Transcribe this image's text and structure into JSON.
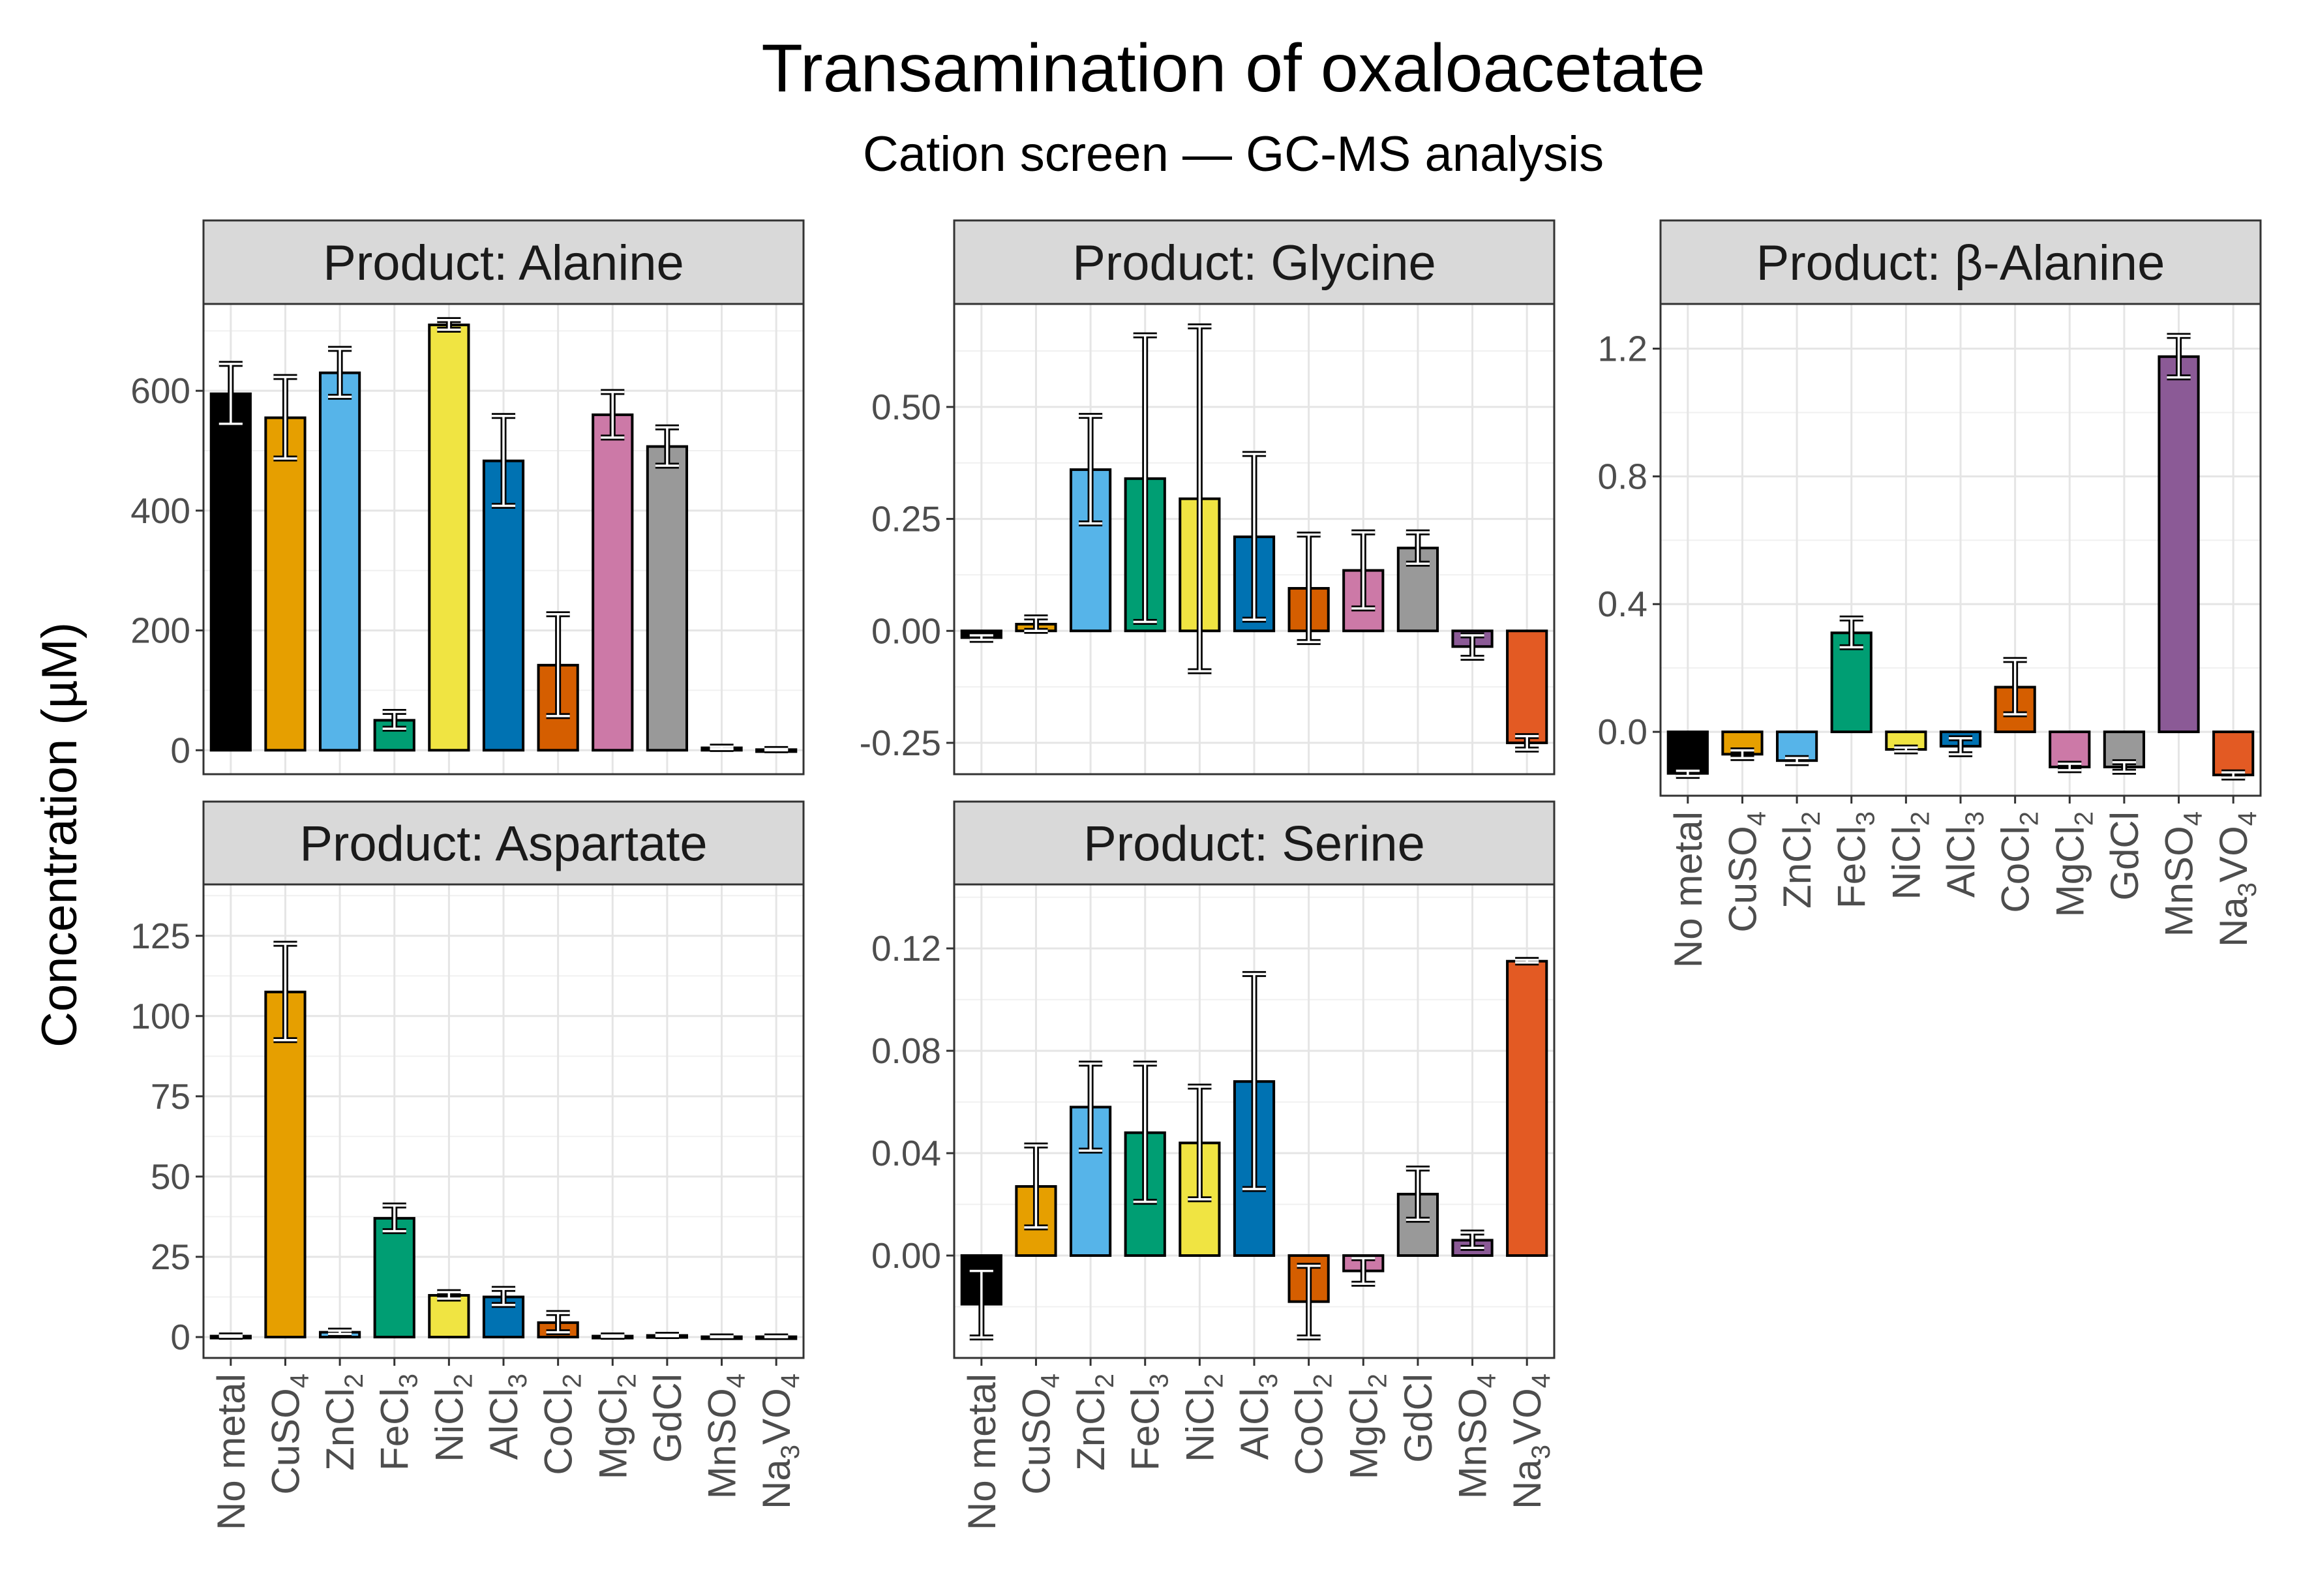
{
  "chart_data": {
    "type": "bar",
    "title": "Transamination of oxaloacetate",
    "subtitle": "Cation screen — GC-MS analysis",
    "ylabel": "Concentration (µM)",
    "xlabel": "",
    "grid": true,
    "legend": "none",
    "categories": [
      "No metal",
      "CuSO4",
      "ZnCl2",
      "FeCl3",
      "NiCl2",
      "AlCl3",
      "CoCl2",
      "MgCl2",
      "GdCl",
      "MnSO4",
      "Na3VO4"
    ],
    "category_labels": [
      [
        {
          "t": "No metal"
        }
      ],
      [
        {
          "t": "CuSO"
        },
        {
          "t": "4",
          "sub": true
        }
      ],
      [
        {
          "t": "ZnCl"
        },
        {
          "t": "2",
          "sub": true
        }
      ],
      [
        {
          "t": "FeCl"
        },
        {
          "t": "3",
          "sub": true
        }
      ],
      [
        {
          "t": "NiCl"
        },
        {
          "t": "2",
          "sub": true
        }
      ],
      [
        {
          "t": "AlCl"
        },
        {
          "t": "3",
          "sub": true
        }
      ],
      [
        {
          "t": "CoCl"
        },
        {
          "t": "2",
          "sub": true
        }
      ],
      [
        {
          "t": "MgCl"
        },
        {
          "t": "2",
          "sub": true
        }
      ],
      [
        {
          "t": "GdCl"
        }
      ],
      [
        {
          "t": "MnSO"
        },
        {
          "t": "4",
          "sub": true
        }
      ],
      [
        {
          "t": "Na"
        },
        {
          "t": "3",
          "sub": true
        },
        {
          "t": "VO"
        },
        {
          "t": "4",
          "sub": true
        }
      ]
    ],
    "colors": [
      "#000000",
      "#E69F00",
      "#56B4E9",
      "#009E73",
      "#F0E442",
      "#0072B2",
      "#D55E00",
      "#CC79A7",
      "#999999",
      "#8B5A96",
      "#E35A23"
    ],
    "panels": [
      {
        "strip": "Product: Alanine",
        "ylim": [
          -40,
          745
        ],
        "ticks": [
          0,
          200,
          400,
          600
        ],
        "tick_labels": [
          "0",
          "200",
          "400",
          "600"
        ],
        "values": [
          595,
          555,
          630,
          50,
          710,
          483,
          142,
          560,
          507,
          4,
          1
        ],
        "errors": [
          50,
          68,
          40,
          14,
          8,
          75,
          85,
          38,
          32,
          2,
          1
        ]
      },
      {
        "strip": "Product: Glycine",
        "ylim": [
          -0.32,
          0.73
        ],
        "ticks": [
          -0.25,
          0.0,
          0.25,
          0.5
        ],
        "tick_labels": [
          "-0.25",
          "0.00",
          "0.25",
          "0.50"
        ],
        "values": [
          -0.015,
          0.015,
          0.36,
          0.34,
          0.295,
          0.21,
          0.095,
          0.135,
          0.185,
          -0.035,
          -0.25
        ],
        "errors": [
          0.005,
          0.015,
          0.12,
          0.32,
          0.385,
          0.185,
          0.12,
          0.085,
          0.035,
          0.025,
          0.015
        ]
      },
      {
        "strip": "Product: β-Alanine",
        "ylim": [
          -0.2,
          1.34
        ],
        "ticks": [
          0.0,
          0.4,
          0.8,
          1.2
        ],
        "tick_labels": [
          "0.0",
          "0.4",
          "0.8",
          "1.2"
        ],
        "values": [
          -0.13,
          -0.07,
          -0.09,
          0.31,
          -0.055,
          -0.045,
          0.14,
          -0.11,
          -0.11,
          1.175,
          -0.135
        ],
        "errors": [
          0.008,
          0.012,
          0.008,
          0.045,
          0.006,
          0.025,
          0.085,
          0.01,
          0.015,
          0.065,
          0.008
        ]
      },
      {
        "strip": "Product: Aspartate",
        "ylim": [
          -6.5,
          141
        ],
        "ticks": [
          0,
          25,
          50,
          75,
          100,
          125
        ],
        "tick_labels": [
          "0",
          "25",
          "50",
          "75",
          "100",
          "125"
        ],
        "values": [
          0.3,
          107.5,
          1.5,
          37,
          13,
          12.5,
          4.5,
          0.3,
          0.5,
          0.1,
          0.1
        ],
        "errors": [
          0.2,
          15,
          0.5,
          4,
          1,
          2.5,
          3,
          0.2,
          0.2,
          0.1,
          0.1
        ]
      },
      {
        "strip": "Product: Serine",
        "ylim": [
          -0.04,
          0.145
        ],
        "ticks": [
          0.0,
          0.04,
          0.08,
          0.12
        ],
        "tick_labels": [
          "0.00",
          "0.04",
          "0.08",
          "0.12"
        ],
        "values": [
          -0.019,
          0.027,
          0.058,
          0.048,
          0.044,
          0.068,
          -0.018,
          -0.006,
          0.024,
          0.006,
          0.115
        ],
        "errors": [
          0.013,
          0.016,
          0.017,
          0.027,
          0.022,
          0.042,
          0.014,
          0.005,
          0.01,
          0.003,
          0.0005
        ]
      }
    ]
  }
}
